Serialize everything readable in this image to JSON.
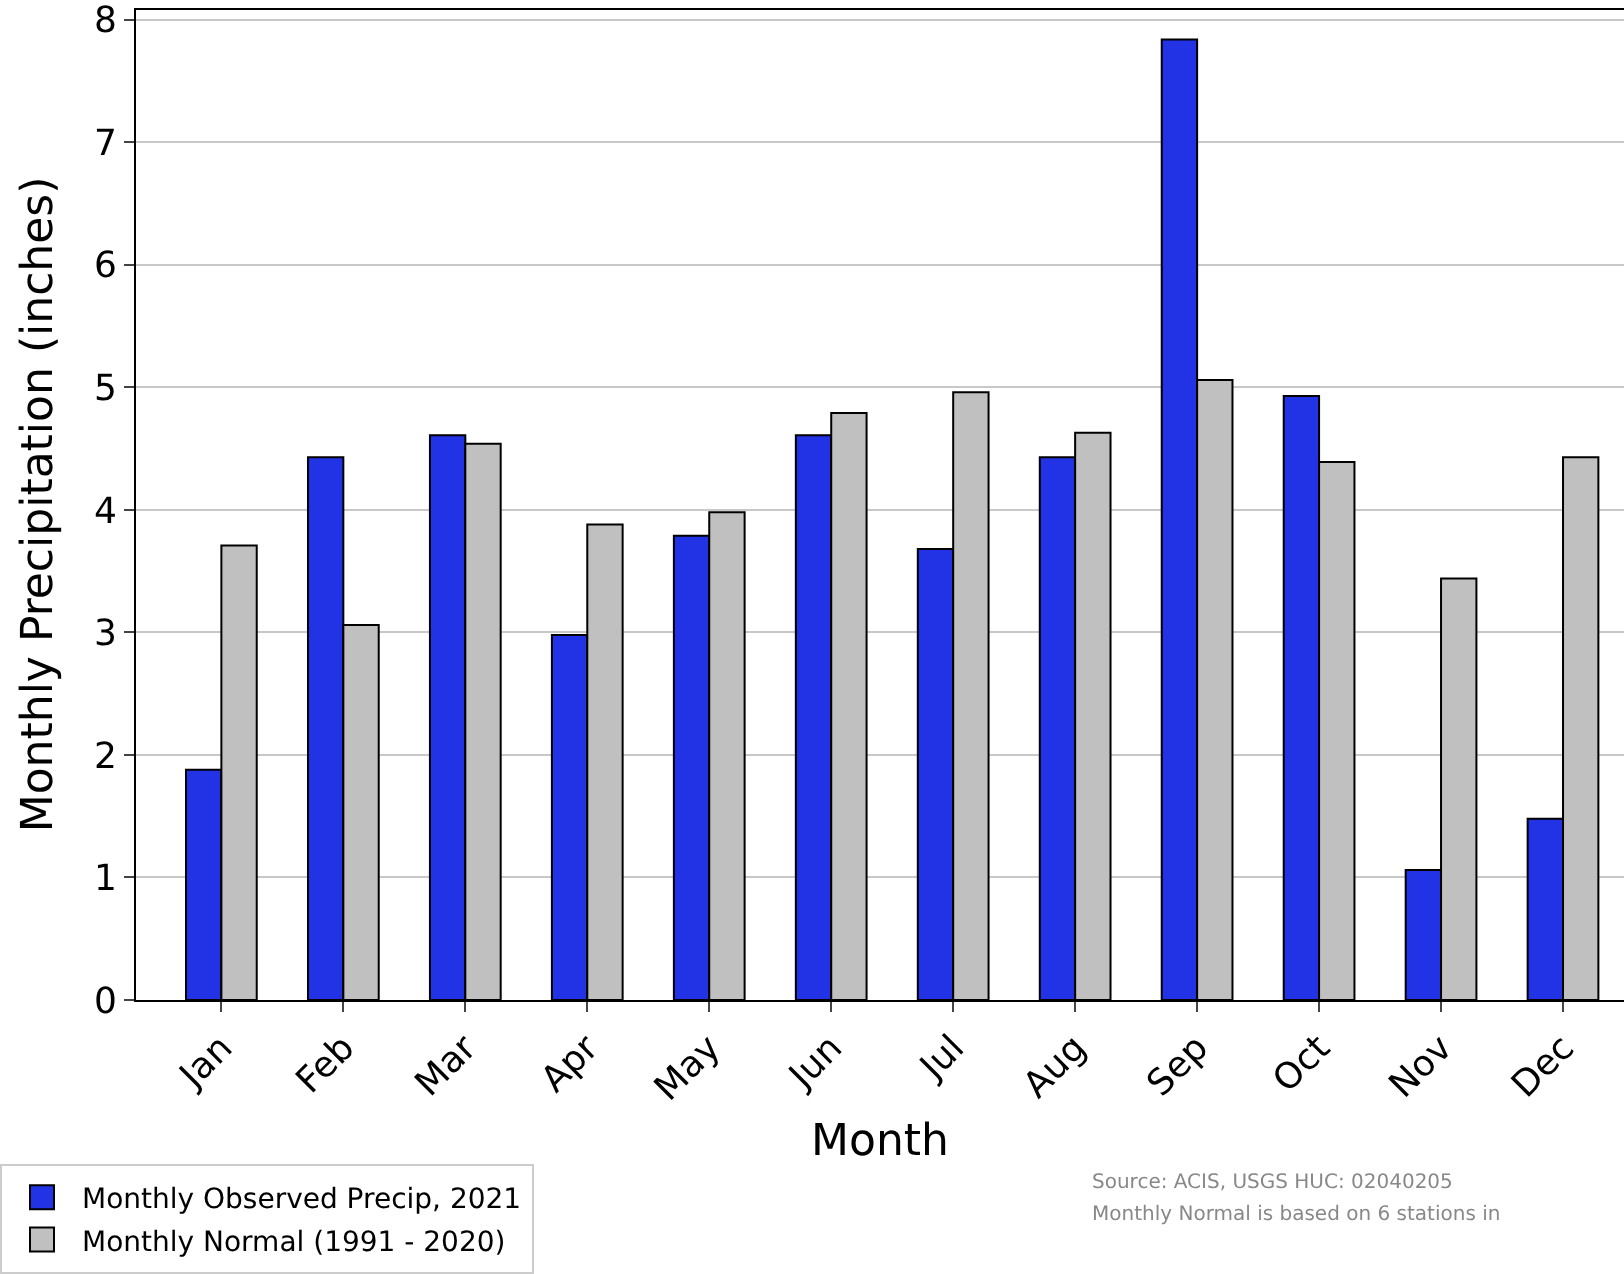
{
  "chart_data": {
    "type": "bar",
    "xlabel": "Month",
    "ylabel": "Monthly Precipitation (inches)",
    "categories": [
      "Jan",
      "Feb",
      "Mar",
      "Apr",
      "May",
      "Jun",
      "Jul",
      "Aug",
      "Sep",
      "Oct",
      "Nov",
      "Dec"
    ],
    "series": [
      {
        "name": "Monthly Observed Precip, 2021",
        "color": "#2233e6",
        "values": [
          1.88,
          4.43,
          4.61,
          2.98,
          3.79,
          4.61,
          3.68,
          4.43,
          7.84,
          4.93,
          1.06,
          1.48
        ]
      },
      {
        "name": "Monthly Normal (1991 - 2020)",
        "color": "#c0c0c0",
        "values": [
          3.71,
          3.06,
          4.54,
          3.88,
          3.98,
          4.79,
          4.96,
          4.63,
          5.06,
          4.39,
          3.44,
          4.43
        ]
      }
    ],
    "ylim": [
      0,
      8.08
    ],
    "yticks": [
      0,
      1,
      2,
      3,
      4,
      5,
      6,
      7,
      8
    ],
    "grid": "y",
    "legend": "bottom left",
    "annotations": [
      "Source: ACIS, USGS HUC: 02040205",
      "Monthly Normal is based on 6 stations in"
    ]
  }
}
